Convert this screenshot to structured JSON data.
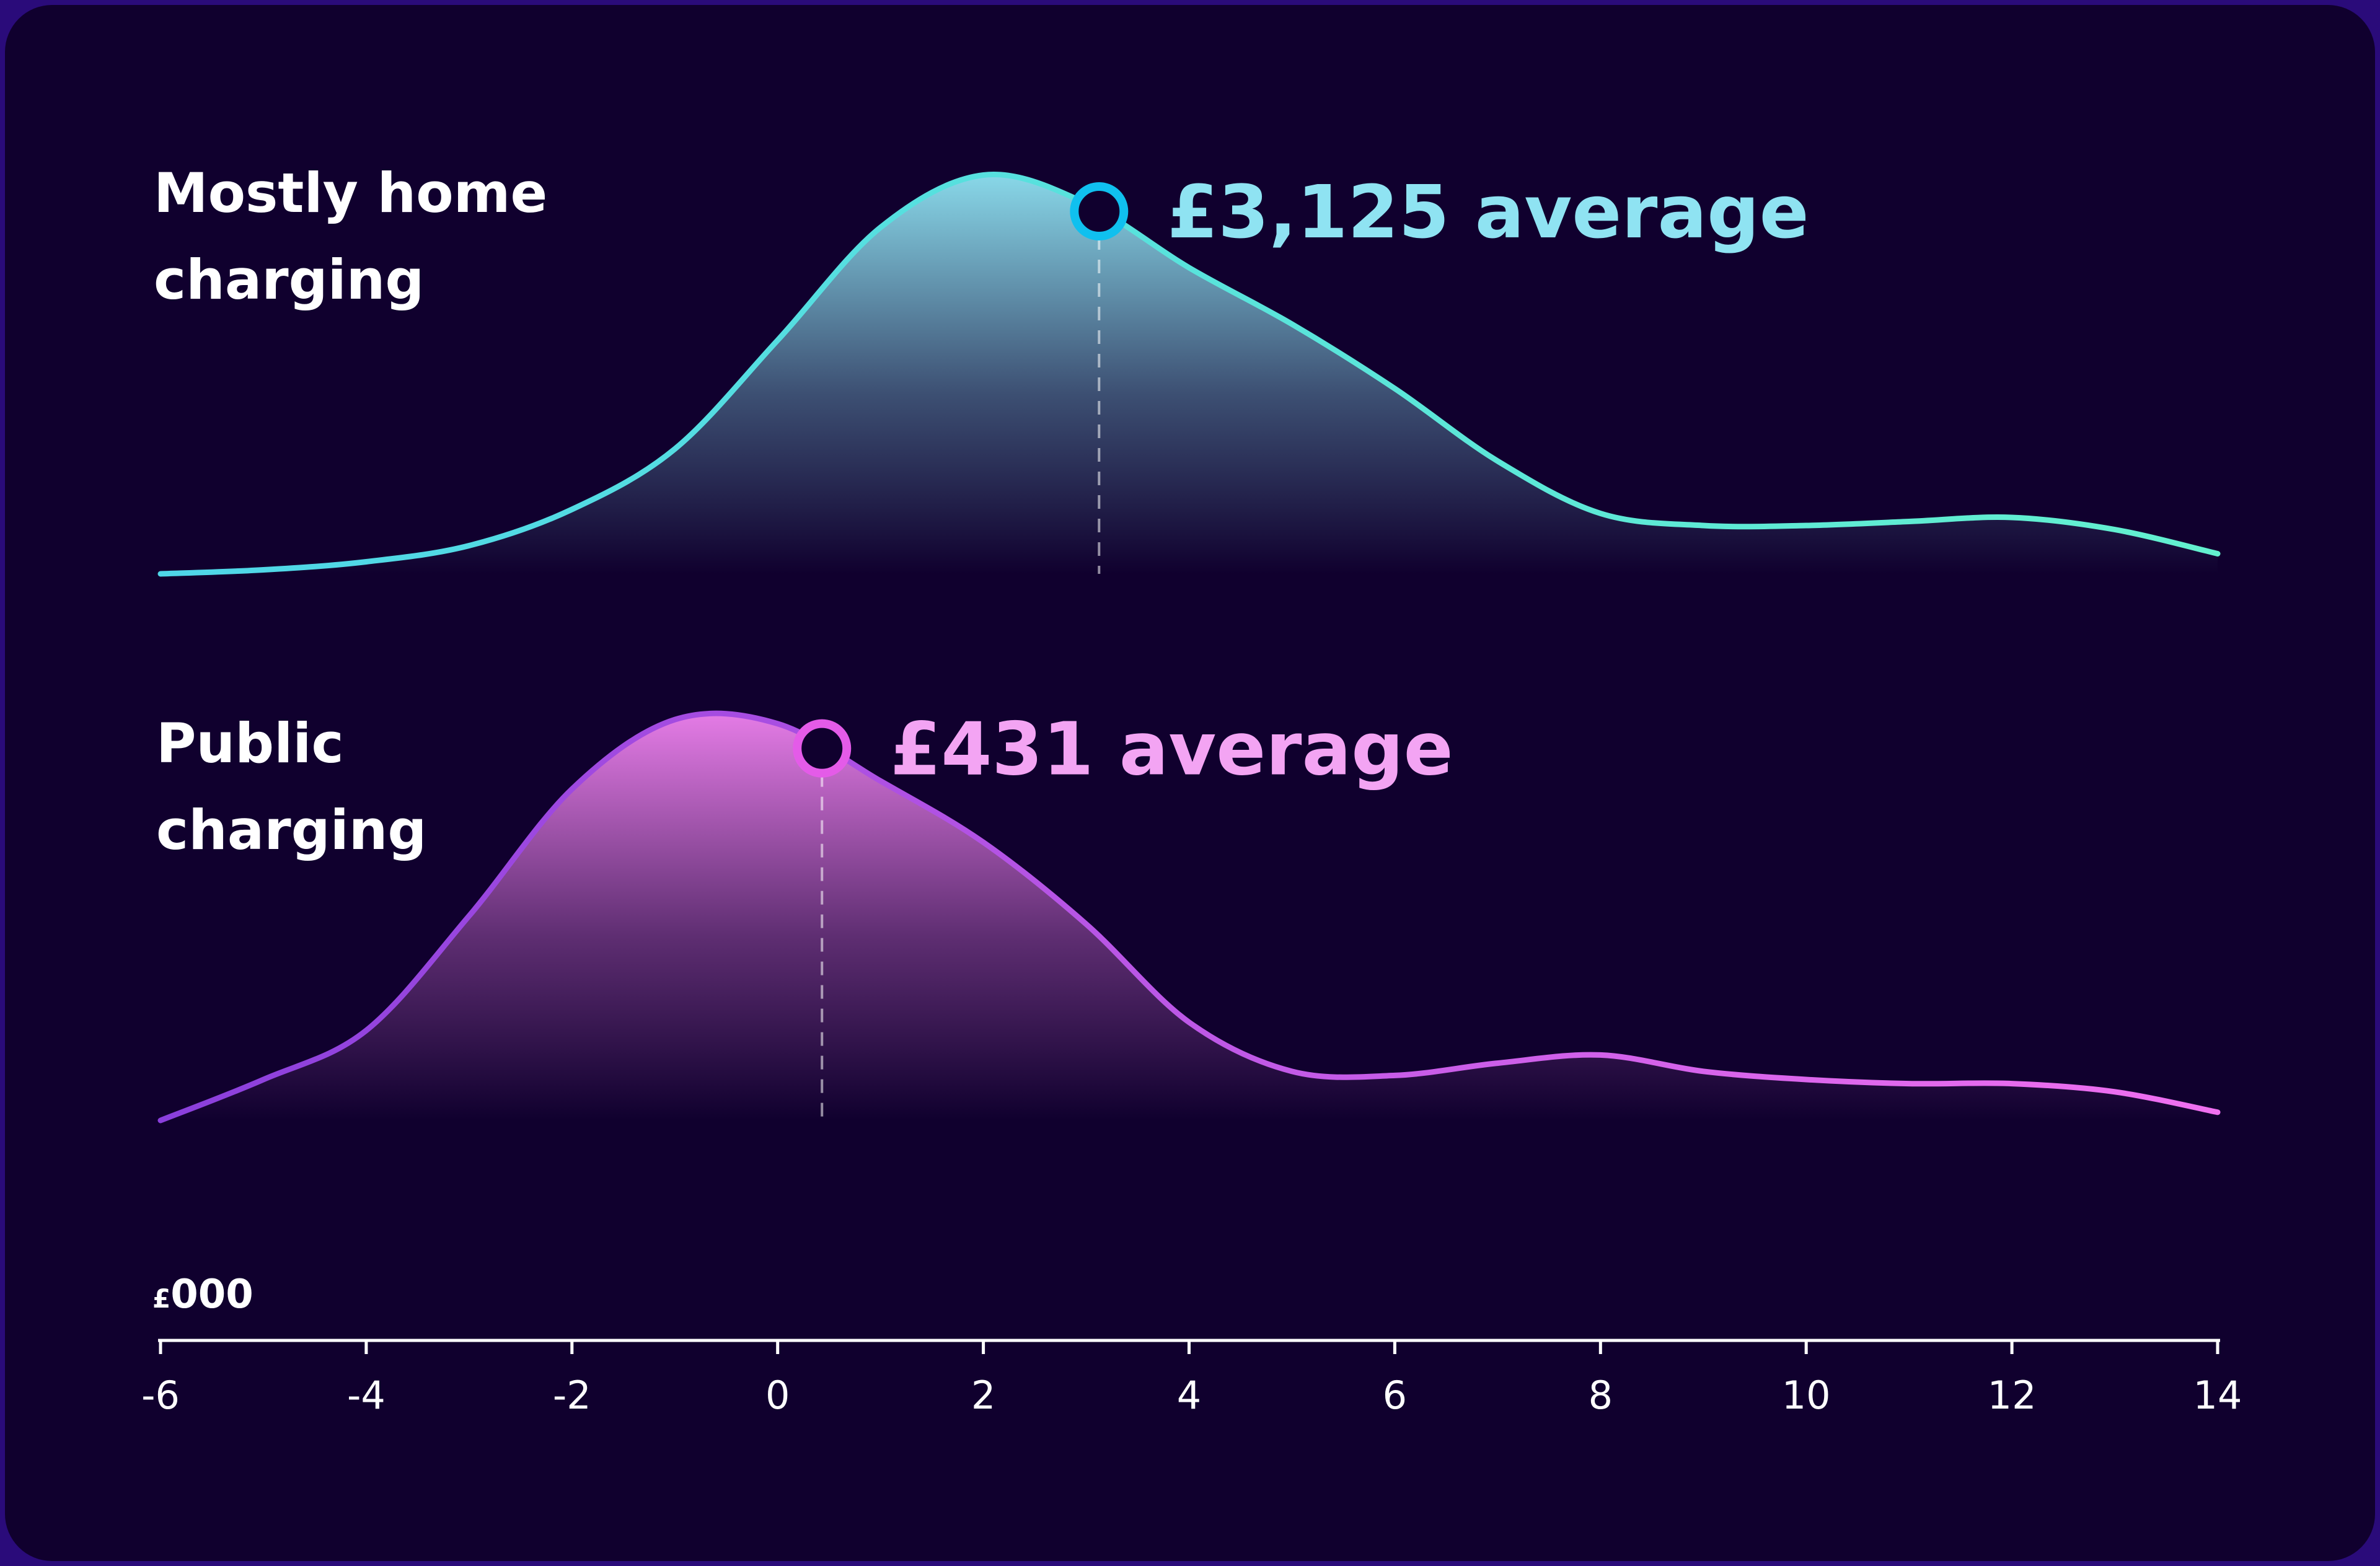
{
  "chart_data": {
    "type": "area",
    "x_unit": "£000",
    "x_ticks": [
      -6,
      -4,
      -2,
      0,
      2,
      4,
      6,
      8,
      10,
      12,
      14
    ],
    "xlim": [
      -6,
      14
    ],
    "series": [
      {
        "name": "Mostly home charging",
        "label_lines": [
          "Mostly home",
          "charging"
        ],
        "average_label": "£3,125 average",
        "average_value": 3.125,
        "x": [
          -6,
          -5,
          -4,
          -3,
          -2,
          -1,
          0,
          1,
          2,
          3,
          4,
          5,
          6,
          7,
          8,
          9,
          10,
          11,
          12,
          13,
          14
        ],
        "y": [
          0.0,
          0.01,
          0.03,
          0.07,
          0.16,
          0.31,
          0.58,
          0.86,
          0.99,
          0.92,
          0.76,
          0.62,
          0.46,
          0.28,
          0.15,
          0.12,
          0.12,
          0.13,
          0.14,
          0.11,
          0.05
        ],
        "stroke_start": "#4fd6e8",
        "stroke_end": "#63f0cf",
        "fill_top": "#8fe3f2",
        "marker_color": "#10c0ef",
        "label_color": "#8fe3f2"
      },
      {
        "name": "Public charging",
        "label_lines": [
          "Public",
          "charging"
        ],
        "average_label": "£431 average",
        "average_value": 0.431,
        "x": [
          -6,
          -5,
          -4,
          -3,
          -2,
          -1,
          0,
          1,
          2,
          3,
          4,
          5,
          6,
          7,
          8,
          9,
          10,
          11,
          12,
          13,
          14
        ],
        "y": [
          0.0,
          0.1,
          0.22,
          0.5,
          0.81,
          0.98,
          0.97,
          0.83,
          0.68,
          0.48,
          0.24,
          0.12,
          0.11,
          0.14,
          0.16,
          0.12,
          0.1,
          0.09,
          0.09,
          0.07,
          0.02
        ],
        "stroke_start": "#8a3fdc",
        "stroke_end": "#f070f0",
        "fill_top": "#ef82ef",
        "marker_color": "#e45be8",
        "label_color": "#f3a4f3"
      }
    ]
  }
}
